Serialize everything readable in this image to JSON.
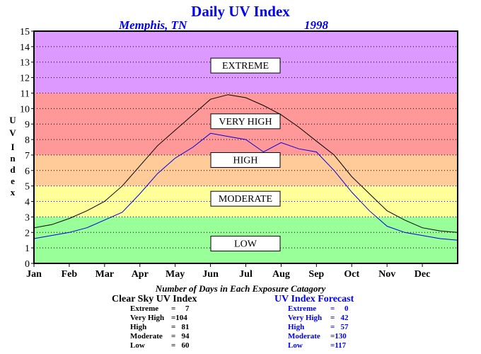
{
  "title": "Daily UV Index",
  "location": "Memphis, TN",
  "year": "1998",
  "colors": {
    "low": "#99ff99",
    "moderate": "#ffff99",
    "high": "#ffcc99",
    "very_high": "#ff9999",
    "extreme": "#dd99ff",
    "clear_sky_line": "#000000",
    "forecast_line": "#0000dd"
  },
  "chart_data": {
    "type": "line",
    "title": "Daily UV Index",
    "ylabel": "UV Index",
    "xlabel": "",
    "ylim": [
      0,
      15
    ],
    "yticks": [
      "0",
      "1",
      "2",
      "3",
      "4",
      "5",
      "6",
      "7",
      "8",
      "9",
      "10",
      "11",
      "12",
      "13",
      "14",
      "15"
    ],
    "x_tick_labels": [
      "Jan",
      "Feb",
      "Mar",
      "Apr",
      "May",
      "Jun",
      "Jul",
      "Aug",
      "Sep",
      "Oct",
      "Nov",
      "Dec"
    ],
    "grid": "dotted horizontal lines at each integer",
    "bands": [
      {
        "label": "LOW",
        "from": 0,
        "to": 3
      },
      {
        "label": "MODERATE",
        "from": 3,
        "to": 5
      },
      {
        "label": "HIGH",
        "from": 5,
        "to": 7
      },
      {
        "label": "VERY HIGH",
        "from": 7,
        "to": 11
      },
      {
        "label": "EXTREME",
        "from": 11,
        "to": 15
      }
    ],
    "series": [
      {
        "name": "Clear Sky UV Index",
        "color": "#000000",
        "x_month": [
          1.0,
          1.5,
          2.0,
          2.5,
          3.0,
          3.5,
          4.0,
          4.5,
          5.0,
          5.5,
          6.0,
          6.5,
          7.0,
          7.5,
          8.0,
          8.5,
          9.0,
          9.5,
          10.0,
          10.5,
          11.0,
          11.5,
          12.0,
          12.5,
          13.0
        ],
        "y": [
          2.3,
          2.5,
          2.9,
          3.4,
          4.0,
          5.0,
          6.3,
          7.6,
          8.6,
          9.6,
          10.6,
          10.9,
          10.7,
          10.2,
          9.6,
          8.8,
          7.9,
          7.0,
          5.6,
          4.5,
          3.4,
          2.8,
          2.3,
          2.1,
          2.0
        ]
      },
      {
        "name": "UV Index Forecast",
        "color": "#0000dd",
        "x_month": [
          1.0,
          1.5,
          2.0,
          2.5,
          3.0,
          3.5,
          4.0,
          4.5,
          5.0,
          5.5,
          6.0,
          6.5,
          7.0,
          7.5,
          8.0,
          8.5,
          9.0,
          9.5,
          10.0,
          10.5,
          11.0,
          11.5,
          12.0,
          12.5,
          13.0
        ],
        "y": [
          1.6,
          1.8,
          2.0,
          2.3,
          2.8,
          3.3,
          4.5,
          5.8,
          6.8,
          7.5,
          8.4,
          8.2,
          8.0,
          7.2,
          7.8,
          7.4,
          7.2,
          6.0,
          4.6,
          3.4,
          2.4,
          2.0,
          1.8,
          1.6,
          1.5
        ]
      }
    ]
  },
  "summary": {
    "heading": "Number of Days in Each Exposure Catagory",
    "clear_sky": {
      "title": "Clear Sky UV Index",
      "rows": [
        {
          "label": "Extreme",
          "value": "=     7"
        },
        {
          "label": "Very High",
          "value": "=104"
        },
        {
          "label": "High",
          "value": "=   81"
        },
        {
          "label": "Moderate",
          "value": "=   94"
        },
        {
          "label": "Low",
          "value": "=   60"
        }
      ]
    },
    "forecast": {
      "title": "UV Index Forecast",
      "rows": [
        {
          "label": "Extreme",
          "value": "=     0"
        },
        {
          "label": "Very High",
          "value": "=   42"
        },
        {
          "label": "High",
          "value": "=   57"
        },
        {
          "label": "Moderate",
          "value": "=130"
        },
        {
          "label": "Low",
          "value": "=117"
        }
      ]
    }
  }
}
